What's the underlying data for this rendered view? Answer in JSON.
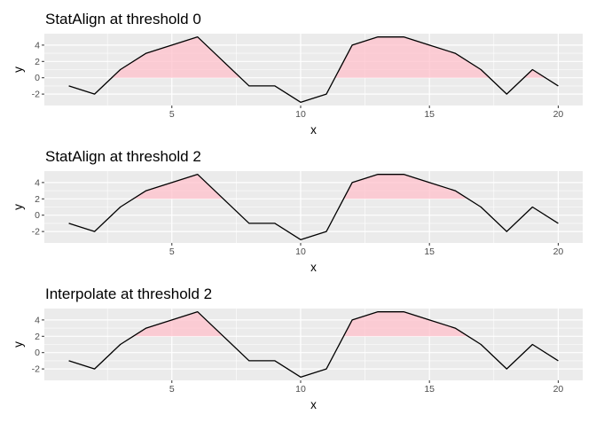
{
  "chart_data": [
    {
      "type": "line",
      "title": "StatAlign at threshold 0",
      "xlabel": "x",
      "ylabel": "y",
      "threshold": 0,
      "x": [
        1,
        2,
        3,
        4,
        5,
        6,
        7,
        8,
        9,
        10,
        11,
        12,
        13,
        14,
        15,
        16,
        17,
        18,
        19,
        20
      ],
      "y": [
        -1,
        -2,
        1,
        3,
        4,
        5,
        2,
        -1,
        -1,
        -3,
        -2,
        4,
        5,
        5,
        4,
        3,
        1,
        -2,
        1,
        -1
      ],
      "xlim": [
        0.05,
        20.95
      ],
      "ylim": [
        -3.4,
        5.4
      ],
      "x_ticks": [
        5,
        10,
        15,
        20
      ],
      "y_ticks": [
        -2,
        0,
        2,
        4
      ],
      "line_color": "#000000",
      "fill_color": "#FFC0CB",
      "panel_bg": "#EBEBEB"
    },
    {
      "type": "line",
      "title": "StatAlign at threshold 2",
      "xlabel": "x",
      "ylabel": "y",
      "threshold": 2,
      "x": [
        1,
        2,
        3,
        4,
        5,
        6,
        7,
        8,
        9,
        10,
        11,
        12,
        13,
        14,
        15,
        16,
        17,
        18,
        19,
        20
      ],
      "y": [
        -1,
        -2,
        1,
        3,
        4,
        5,
        2,
        -1,
        -1,
        -3,
        -2,
        4,
        5,
        5,
        4,
        3,
        1,
        -2,
        1,
        -1
      ],
      "xlim": [
        0.05,
        20.95
      ],
      "ylim": [
        -3.4,
        5.4
      ],
      "x_ticks": [
        5,
        10,
        15,
        20
      ],
      "y_ticks": [
        -2,
        0,
        2,
        4
      ],
      "line_color": "#000000",
      "fill_color": "#FFC0CB",
      "panel_bg": "#EBEBEB"
    },
    {
      "type": "line",
      "title": "Interpolate at threshold 2",
      "xlabel": "x",
      "ylabel": "y",
      "threshold": 2,
      "x": [
        1,
        2,
        3,
        4,
        5,
        6,
        7,
        8,
        9,
        10,
        11,
        12,
        13,
        14,
        15,
        16,
        17,
        18,
        19,
        20
      ],
      "y": [
        -1,
        -2,
        1,
        3,
        4,
        5,
        2,
        -1,
        -1,
        -3,
        -2,
        4,
        5,
        5,
        4,
        3,
        1,
        -2,
        1,
        -1
      ],
      "xlim": [
        0.05,
        20.95
      ],
      "ylim": [
        -3.4,
        5.4
      ],
      "x_ticks": [
        5,
        10,
        15,
        20
      ],
      "y_ticks": [
        -2,
        0,
        2,
        4
      ],
      "line_color": "#000000",
      "fill_color": "#FFC0CB",
      "panel_bg": "#EBEBEB"
    }
  ]
}
